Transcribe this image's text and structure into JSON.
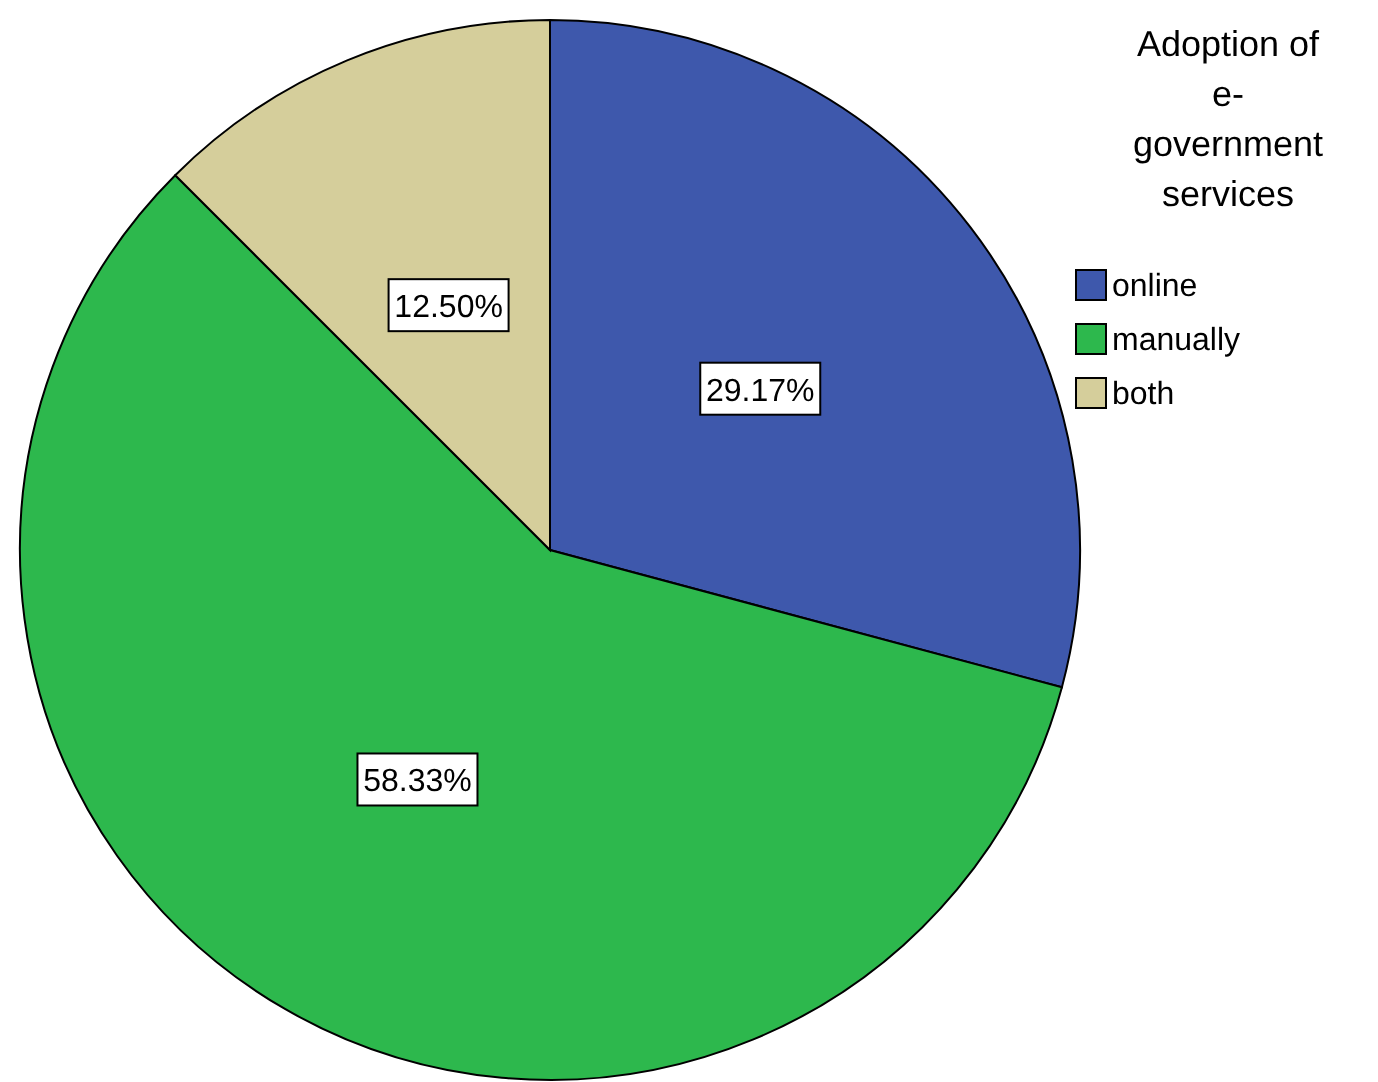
{
  "chart_data": {
    "type": "pie",
    "legend_title": "Adoption of e-government services",
    "categories": [
      "online",
      "manually",
      "both"
    ],
    "values": [
      29.17,
      58.33,
      12.5
    ],
    "colors": [
      "#3e58ac",
      "#2db84d",
      "#d5ce9b"
    ],
    "value_labels": [
      "29.17%",
      "58.33%",
      "12.50%"
    ],
    "legend": "right"
  }
}
